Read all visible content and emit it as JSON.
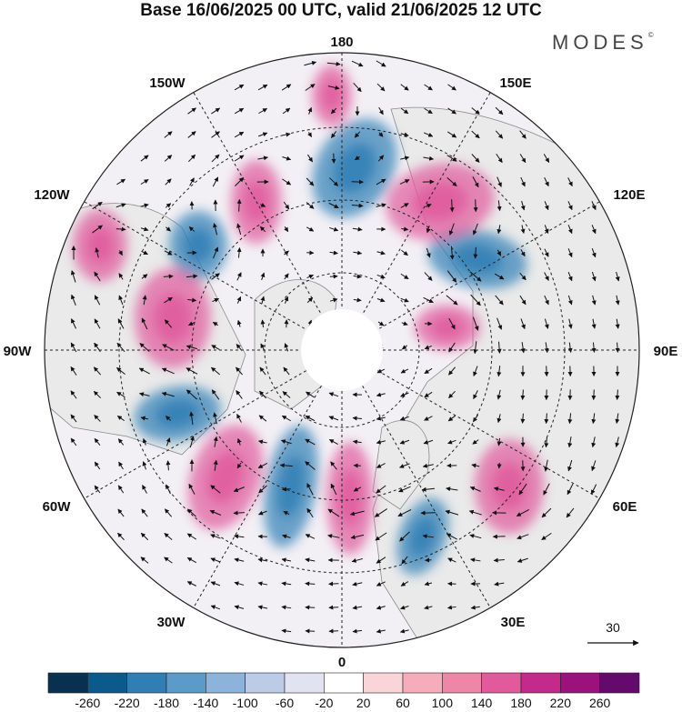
{
  "title": "Base 16/06/2025 00 UTC, valid 21/06/2025 12 UTC",
  "brand": "MODES",
  "brand_mark": "©",
  "longitude_labels": {
    "top": "180",
    "top_left": "150W",
    "top_right": "150E",
    "upper_left": "120W",
    "upper_right": "120E",
    "left": "90W",
    "right": "90E",
    "lower_left": "60W",
    "lower_right": "60E",
    "bottom_left": "30W",
    "bottom_right": "30E",
    "bottom": "0"
  },
  "reference_vector": {
    "label": "30"
  },
  "colorbar": {
    "colors": [
      "#08304f",
      "#0b5a8c",
      "#2f7fb5",
      "#5a9bc9",
      "#8cb4da",
      "#bccbe6",
      "#e2e3f0",
      "#ffffff",
      "#f9d4d8",
      "#f5adbc",
      "#ee86a8",
      "#e05a9c",
      "#c42a8a",
      "#9c127d",
      "#640a6c"
    ],
    "labels": [
      "-260",
      "-220",
      "-180",
      "-140",
      "-100",
      "-60",
      "-20",
      "20",
      "60",
      "100",
      "140",
      "180",
      "220",
      "260"
    ]
  },
  "anomaly_colors": {
    "negative": "#2f7fb5",
    "positive": "#e05a9c",
    "land": "#eaeaea"
  }
}
